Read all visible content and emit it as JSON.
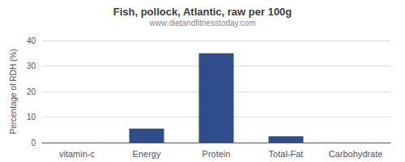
{
  "chart_data": {
    "type": "bar",
    "title": "Fish, pollock, Atlantic, raw per 100g",
    "subtitle": "www.dietandfitnesstoday.com",
    "categories": [
      "vitamin-c",
      "Energy",
      "Protein",
      "Total-Fat",
      "Carbohydrate"
    ],
    "values": [
      0,
      5.5,
      35,
      2.5,
      0
    ],
    "color": "#2e4d8a",
    "ylabel": "Percentage of RDH (%)",
    "ylim": [
      0,
      40
    ],
    "yticks": [
      0,
      10,
      20,
      30,
      40
    ],
    "grid": true
  }
}
